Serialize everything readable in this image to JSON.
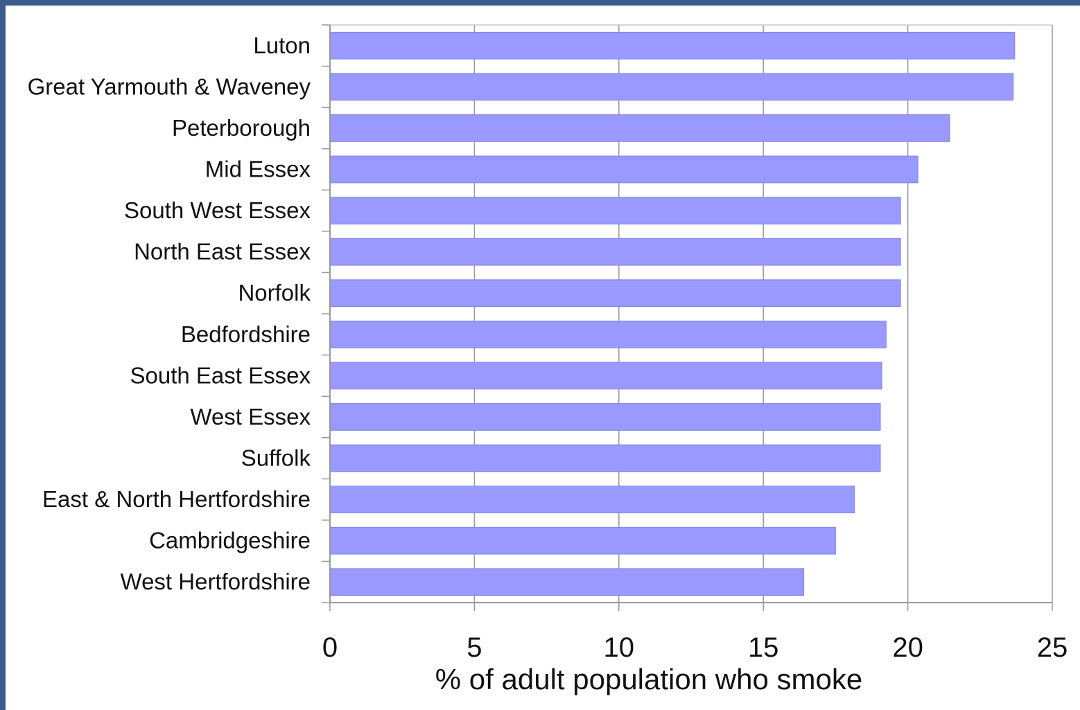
{
  "chart_data": {
    "type": "bar",
    "orientation": "horizontal",
    "categories": [
      "Luton",
      "Great Yarmouth & Waveney",
      "Peterborough",
      "Mid Essex",
      "South West Essex",
      "North East Essex",
      "Norfolk",
      "Bedfordshire",
      "South East Essex",
      "West Essex",
      "Suffolk",
      "East & North Hertfordshire",
      "Cambridgeshire",
      "West Hertfordshire"
    ],
    "values": [
      23.7,
      23.65,
      21.45,
      20.35,
      19.75,
      19.75,
      19.75,
      19.25,
      19.1,
      19.05,
      19.05,
      18.15,
      17.5,
      16.4
    ],
    "xlabel": "% of adult population who smoke",
    "ylabel": "",
    "title": "",
    "xlim": [
      0,
      25
    ],
    "xticks": [
      "0",
      "5",
      "10",
      "15",
      "20",
      "25"
    ],
    "grid": true,
    "legend": "none",
    "bar_color": "#9999ff",
    "grid_color": "#999999",
    "background_color": "#ffffff",
    "frame_color": "#3a5a8c"
  }
}
